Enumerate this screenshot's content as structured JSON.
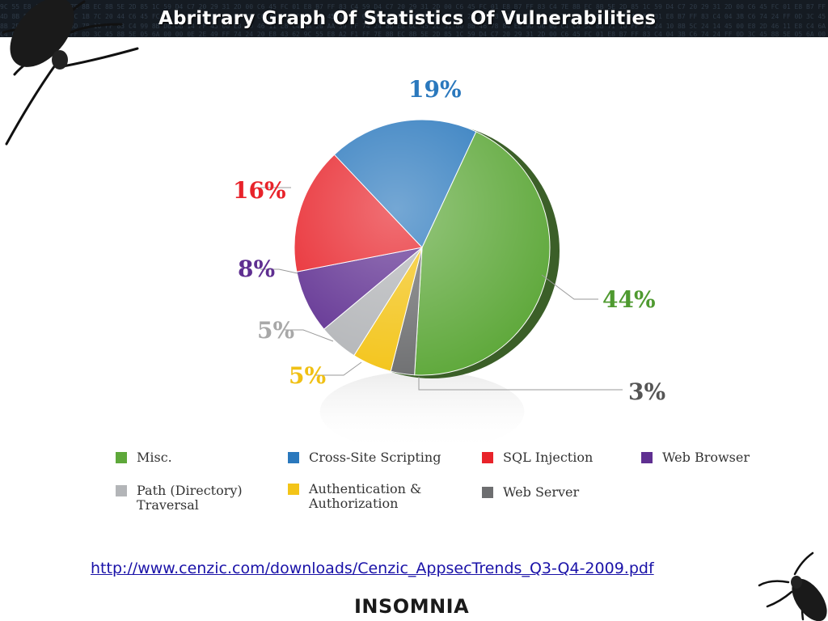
{
  "slide": {
    "title": "Abritrary Graph Of Statistics Of Vulnerabilities",
    "source_url": "http://www.cenzic.com/downloads/Cenzic_AppsecTrends_Q3-Q4-2009.pdf",
    "brand": "INSOMNIA"
  },
  "chart_data": {
    "type": "pie",
    "title": "",
    "slices": [
      {
        "name": "Misc.",
        "value": 44,
        "label": "44%",
        "color": "#5ea83a",
        "legend": [
          "Misc."
        ]
      },
      {
        "name": "Cross-Site Scripting",
        "value": 19,
        "label": "19%",
        "color": "#2a78bd",
        "legend": [
          "Cross-Site Scripting"
        ]
      },
      {
        "name": "SQL Injection",
        "value": 16,
        "label": "16%",
        "color": "#e8232a",
        "legend": [
          "SQL Injection"
        ]
      },
      {
        "name": "Web Browser",
        "value": 8,
        "label": "8%",
        "color": "#5f2f91",
        "legend": [
          "Web Browser"
        ]
      },
      {
        "name": "Path (Directory) Traversal",
        "value": 5,
        "label": "5%",
        "color": "#b3b5b8",
        "legend": [
          "Path (Directory)",
          "Traversal"
        ]
      },
      {
        "name": "Authentication & Authorization",
        "value": 5,
        "label": "5%",
        "color": "#f3c418",
        "legend": [
          "Authentication &",
          "Authorization"
        ]
      },
      {
        "name": "Web Server",
        "value": 3,
        "label": "3%",
        "color": "#6d6e70",
        "legend": [
          "Web Server"
        ]
      }
    ],
    "legend_placement": "bottom"
  }
}
